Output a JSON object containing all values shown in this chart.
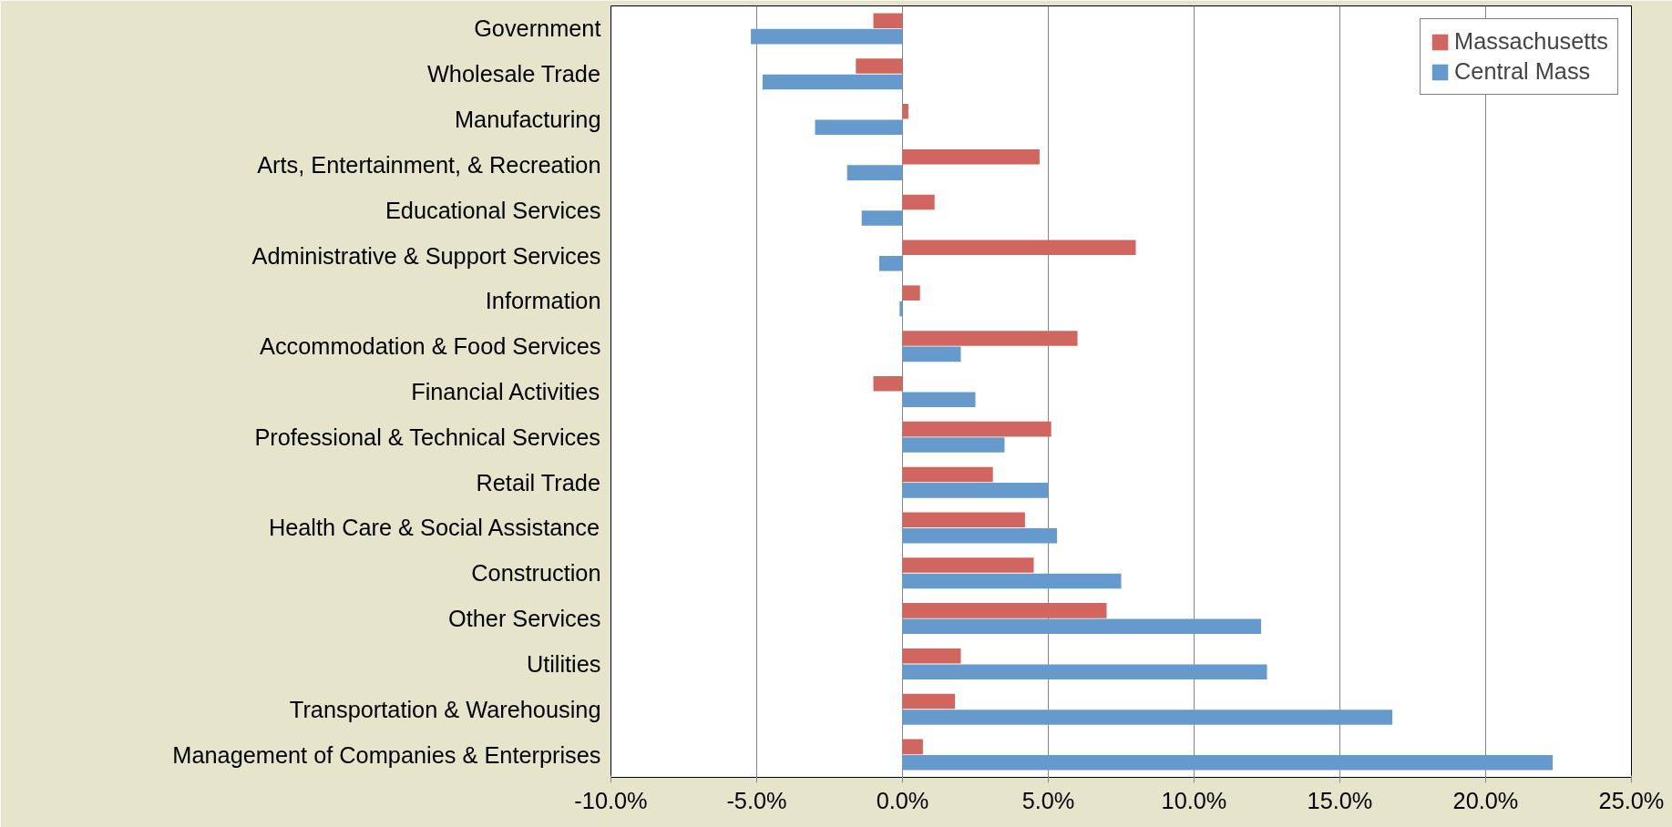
{
  "chart_data": {
    "type": "bar",
    "orientation": "horizontal",
    "categories": [
      "Government",
      "Wholesale Trade",
      "Manufacturing",
      "Arts, Entertainment, & Recreation",
      "Educational Services",
      "Administrative & Support Services",
      "Information",
      "Accommodation & Food Services",
      "Financial Activities",
      "Professional & Technical Services",
      "Retail Trade",
      "Health Care & Social Assistance",
      "Construction",
      "Other Services",
      "Utilities",
      "Transportation & Warehousing",
      "Management of Companies & Enterprises"
    ],
    "series": [
      {
        "name": "Massachusetts",
        "color": "#d0665f",
        "values": [
          -1.0,
          -1.6,
          0.2,
          4.7,
          1.1,
          8.0,
          0.6,
          6.0,
          -1.0,
          5.1,
          3.1,
          4.2,
          4.5,
          7.0,
          2.0,
          1.8,
          0.7
        ]
      },
      {
        "name": "Central Mass",
        "color": "#6699cc",
        "values": [
          -5.2,
          -4.8,
          -3.0,
          -1.9,
          -1.4,
          -0.8,
          -0.1,
          2.0,
          2.5,
          3.5,
          5.0,
          5.3,
          7.5,
          12.3,
          12.5,
          16.8,
          22.3
        ]
      }
    ],
    "xlim": [
      -10,
      25
    ],
    "xticks": [
      {
        "value": -10,
        "label": "-10.0%"
      },
      {
        "value": -5,
        "label": "-5.0%"
      },
      {
        "value": 0,
        "label": "0.0%"
      },
      {
        "value": 5,
        "label": "5.0%"
      },
      {
        "value": 10,
        "label": "10.0%"
      },
      {
        "value": 15,
        "label": "15.0%"
      },
      {
        "value": 20,
        "label": "20.0%"
      },
      {
        "value": 25,
        "label": "25.0%"
      }
    ],
    "grid": "x",
    "legend": "top right"
  }
}
